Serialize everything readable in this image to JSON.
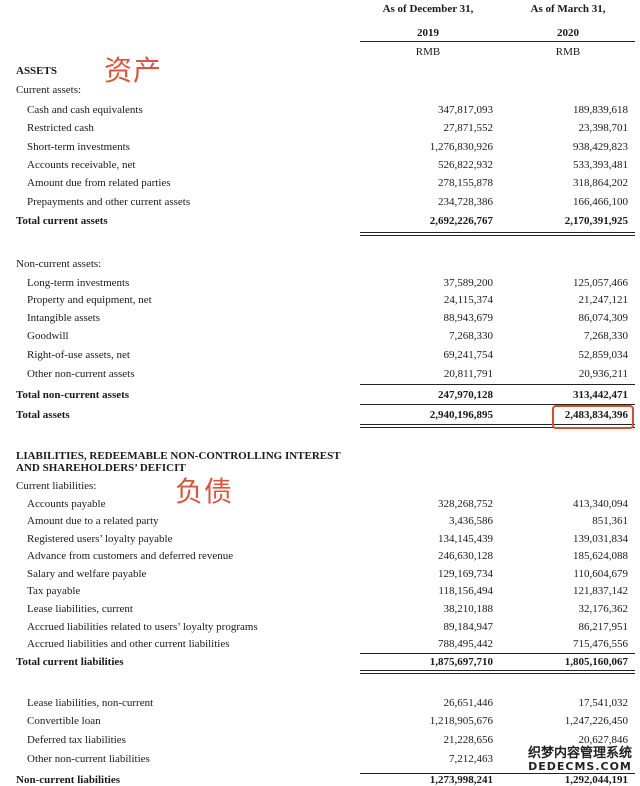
{
  "header": {
    "col1_title": "As of December 31,",
    "col2_title": "As of March 31,",
    "col1_year": "2019",
    "col2_year": "2020",
    "col1_unit": "RMB",
    "col2_unit": "RMB"
  },
  "annotations": {
    "assets": "资产",
    "liabilities": "负债"
  },
  "sections": [
    {
      "type": "heading",
      "label": "ASSETS"
    },
    {
      "type": "subheading",
      "label": "Current assets:"
    },
    {
      "type": "item",
      "label": "Cash and cash equivalents",
      "v2019": "347,817,093",
      "v2020": "189,839,618"
    },
    {
      "type": "item",
      "label": "Restricted cash",
      "v2019": "27,871,552",
      "v2020": "23,398,701"
    },
    {
      "type": "item",
      "label": "Short-term investments",
      "v2019": "1,276,830,926",
      "v2020": "938,429,823"
    },
    {
      "type": "item",
      "label": "Accounts receivable, net",
      "v2019": "526,822,932",
      "v2020": "533,393,481"
    },
    {
      "type": "item",
      "label": "Amount due from related parties",
      "v2019": "278,155,878",
      "v2020": "318,864,202"
    },
    {
      "type": "item",
      "label": "Prepayments and other current assets",
      "v2019": "234,728,386",
      "v2020": "166,466,100"
    },
    {
      "type": "total",
      "label": "Total current assets",
      "v2019": "2,692,226,767",
      "v2020": "2,170,391,925"
    },
    {
      "type": "subheading",
      "label": "Non-current assets:"
    },
    {
      "type": "item",
      "label": "Long-term investments",
      "v2019": "37,589,200",
      "v2020": "125,057,466"
    },
    {
      "type": "item",
      "label": "Property and equipment, net",
      "v2019": "24,115,374",
      "v2020": "21,247,121"
    },
    {
      "type": "item",
      "label": "Intangible assets",
      "v2019": "88,943,679",
      "v2020": "86,074,309"
    },
    {
      "type": "item",
      "label": "Goodwill",
      "v2019": "7,268,330",
      "v2020": "7,268,330"
    },
    {
      "type": "item",
      "label": "Right-of-use assets, net",
      "v2019": "69,241,754",
      "v2020": "52,859,034"
    },
    {
      "type": "item",
      "label": "Other non-current assets",
      "v2019": "20,811,791",
      "v2020": "20,936,211"
    },
    {
      "type": "total",
      "label": "Total non-current assets",
      "v2019": "247,970,128",
      "v2020": "313,442,471"
    },
    {
      "type": "total",
      "label": "Total assets",
      "v2019": "2,940,196,895",
      "v2020": "2,483,834,396",
      "highlighted": true
    },
    {
      "type": "heading",
      "label": "LIABILITIES, REDEEMABLE NON-CONTROLLING INTEREST"
    },
    {
      "type": "heading",
      "label": "AND SHAREHOLDERS’ DEFICIT"
    },
    {
      "type": "subheading",
      "label": "Current liabilities:"
    },
    {
      "type": "item",
      "label": "Accounts payable",
      "v2019": "328,268,752",
      "v2020": "413,340,094"
    },
    {
      "type": "item",
      "label": "Amount due to a related party",
      "v2019": "3,436,586",
      "v2020": "851,361"
    },
    {
      "type": "item",
      "label": "Registered users’ loyalty payable",
      "v2019": "134,145,439",
      "v2020": "139,031,834"
    },
    {
      "type": "item",
      "label": "Advance from customers and deferred revenue",
      "v2019": "246,630,128",
      "v2020": "185,624,088"
    },
    {
      "type": "item",
      "label": "Salary and welfare payable",
      "v2019": "129,169,734",
      "v2020": "110,604,679"
    },
    {
      "type": "item",
      "label": "Tax payable",
      "v2019": "118,156,494",
      "v2020": "121,837,142"
    },
    {
      "type": "item",
      "label": "Lease liabilities, current",
      "v2019": "38,210,188",
      "v2020": "32,176,362"
    },
    {
      "type": "item",
      "label": "Accrued liabilities related to users’ loyalty programs",
      "v2019": "89,184,947",
      "v2020": "86,217,951"
    },
    {
      "type": "item",
      "label": "Accrued liabilities and other current liabilities",
      "v2019": "788,495,442",
      "v2020": "715,476,556"
    },
    {
      "type": "total",
      "label": "Total current liabilities",
      "v2019": "1,875,697,710",
      "v2020": "1,805,160,067"
    },
    {
      "type": "item",
      "label": "Lease liabilities, non-current",
      "v2019": "26,651,446",
      "v2020": "17,541,032"
    },
    {
      "type": "item",
      "label": "Convertible loan",
      "v2019": "1,218,905,676",
      "v2020": "1,247,226,450"
    },
    {
      "type": "item",
      "label": "Deferred tax liabilities",
      "v2019": "21,228,656",
      "v2020": "20,627,846"
    },
    {
      "type": "item",
      "label": "Other non-current liabilities",
      "v2019": "7,212,463",
      "v2020": ""
    },
    {
      "type": "total",
      "label": "Non-current liabilities",
      "v2019": "1,273,998,241",
      "v2020": "1,292,044,191"
    }
  ],
  "watermark": {
    "line1": "织梦内容管理系统",
    "line2": "DEDECMS.COM"
  }
}
